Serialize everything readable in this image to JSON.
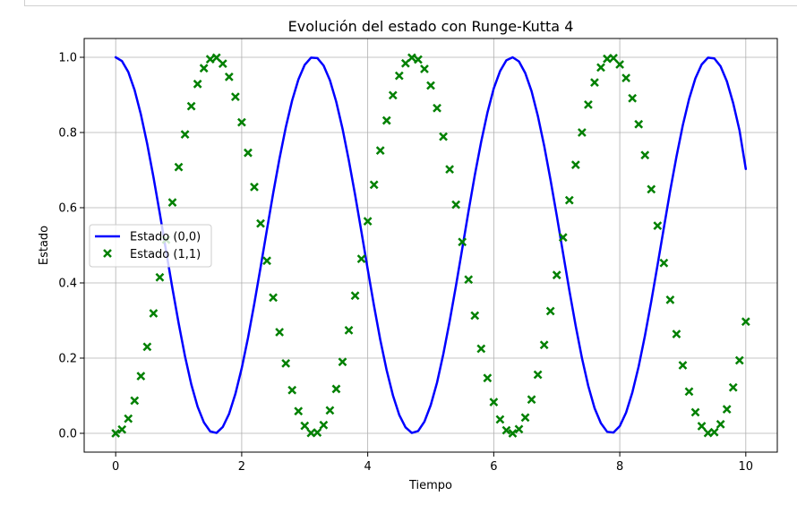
{
  "chart_data": {
    "type": "line",
    "title": "Evolución del estado con Runge-Kutta 4",
    "xlabel": "Tiempo",
    "ylabel": "Estado",
    "xlim": [
      -0.5,
      10.5
    ],
    "ylim": [
      -0.05,
      1.05
    ],
    "xticks": [
      "0",
      "2",
      "4",
      "6",
      "8",
      "10"
    ],
    "yticks": [
      "0.0",
      "0.2",
      "0.4",
      "0.6",
      "0.8",
      "1.0"
    ],
    "grid": true,
    "legend_position": "center-left",
    "series": [
      {
        "name": "Estado (0,0)",
        "style": "line",
        "color": "#0000ff",
        "x": [
          0,
          0.1,
          0.2,
          0.3,
          0.4,
          0.5,
          0.6,
          0.7,
          0.8,
          0.9,
          1.0,
          1.1,
          1.2,
          1.3,
          1.4,
          1.5,
          1.6,
          1.7,
          1.8,
          1.9,
          2.0,
          2.1,
          2.2,
          2.3,
          2.4,
          2.5,
          2.6,
          2.7,
          2.8,
          2.9,
          3.0,
          3.1,
          3.2,
          3.3,
          3.4,
          3.5,
          3.6,
          3.7,
          3.8,
          3.9,
          4.0,
          4.1,
          4.2,
          4.3,
          4.4,
          4.5,
          4.6,
          4.7,
          4.8,
          4.9,
          5.0,
          5.1,
          5.2,
          5.3,
          5.4,
          5.5,
          5.6,
          5.7,
          5.8,
          5.9,
          6.0,
          6.1,
          6.2,
          6.3,
          6.4,
          6.5,
          6.6,
          6.7,
          6.8,
          6.9,
          7.0,
          7.1,
          7.2,
          7.3,
          7.4,
          7.5,
          7.6,
          7.7,
          7.8,
          7.9,
          8.0,
          8.1,
          8.2,
          8.3,
          8.4,
          8.5,
          8.6,
          8.7,
          8.8,
          8.9,
          9.0,
          9.1,
          9.2,
          9.3,
          9.4,
          9.5,
          9.6,
          9.7,
          9.8,
          9.9,
          10.0
        ],
        "y": [
          1.0,
          0.99,
          0.961,
          0.913,
          0.848,
          0.77,
          0.681,
          0.585,
          0.485,
          0.386,
          0.292,
          0.205,
          0.13,
          0.071,
          0.029,
          0.005,
          0.001,
          0.017,
          0.052,
          0.105,
          0.173,
          0.254,
          0.345,
          0.442,
          0.541,
          0.639,
          0.731,
          0.814,
          0.885,
          0.941,
          0.98,
          0.999,
          0.998,
          0.978,
          0.939,
          0.882,
          0.81,
          0.726,
          0.634,
          0.536,
          0.436,
          0.339,
          0.248,
          0.168,
          0.101,
          0.049,
          0.016,
          0.001,
          0.006,
          0.031,
          0.075,
          0.135,
          0.211,
          0.298,
          0.392,
          0.491,
          0.591,
          0.687,
          0.775,
          0.853,
          0.917,
          0.963,
          0.992,
          1.0,
          0.989,
          0.958,
          0.91,
          0.844,
          0.765,
          0.675,
          0.579,
          0.479,
          0.38,
          0.286,
          0.2,
          0.126,
          0.067,
          0.027,
          0.004,
          0.002,
          0.019,
          0.055,
          0.109,
          0.178,
          0.26,
          0.351,
          0.448,
          0.547,
          0.645,
          0.736,
          0.819,
          0.889,
          0.944,
          0.981,
          0.999,
          0.997,
          0.976,
          0.936,
          0.878,
          0.806,
          0.703
        ]
      },
      {
        "name": "Estado (1,1)",
        "style": "x-marker",
        "color": "#008000",
        "x": [
          0,
          0.1,
          0.2,
          0.3,
          0.4,
          0.5,
          0.6,
          0.7,
          0.8,
          0.9,
          1.0,
          1.1,
          1.2,
          1.3,
          1.4,
          1.5,
          1.6,
          1.7,
          1.8,
          1.9,
          2.0,
          2.1,
          2.2,
          2.3,
          2.4,
          2.5,
          2.6,
          2.7,
          2.8,
          2.9,
          3.0,
          3.1,
          3.2,
          3.3,
          3.4,
          3.5,
          3.6,
          3.7,
          3.8,
          3.9,
          4.0,
          4.1,
          4.2,
          4.3,
          4.4,
          4.5,
          4.6,
          4.7,
          4.8,
          4.9,
          5.0,
          5.1,
          5.2,
          5.3,
          5.4,
          5.5,
          5.6,
          5.7,
          5.8,
          5.9,
          6.0,
          6.1,
          6.2,
          6.3,
          6.4,
          6.5,
          6.6,
          6.7,
          6.8,
          6.9,
          7.0,
          7.1,
          7.2,
          7.3,
          7.4,
          7.5,
          7.6,
          7.7,
          7.8,
          7.9,
          8.0,
          8.1,
          8.2,
          8.3,
          8.4,
          8.5,
          8.6,
          8.7,
          8.8,
          8.9,
          9.0,
          9.1,
          9.2,
          9.3,
          9.4,
          9.5,
          9.6,
          9.7,
          9.8,
          9.9,
          10.0
        ],
        "y": [
          0.0,
          0.01,
          0.039,
          0.087,
          0.152,
          0.23,
          0.319,
          0.415,
          0.515,
          0.614,
          0.708,
          0.795,
          0.87,
          0.929,
          0.971,
          0.995,
          0.999,
          0.983,
          0.948,
          0.895,
          0.827,
          0.746,
          0.655,
          0.558,
          0.459,
          0.361,
          0.269,
          0.186,
          0.115,
          0.059,
          0.02,
          0.001,
          0.002,
          0.022,
          0.061,
          0.118,
          0.19,
          0.274,
          0.366,
          0.464,
          0.564,
          0.661,
          0.752,
          0.832,
          0.899,
          0.951,
          0.984,
          0.999,
          0.994,
          0.969,
          0.925,
          0.865,
          0.789,
          0.702,
          0.608,
          0.509,
          0.409,
          0.313,
          0.225,
          0.147,
          0.083,
          0.037,
          0.008,
          0.0,
          0.011,
          0.042,
          0.09,
          0.156,
          0.235,
          0.325,
          0.421,
          0.521,
          0.62,
          0.714,
          0.8,
          0.874,
          0.933,
          0.973,
          0.996,
          0.998,
          0.981,
          0.945,
          0.891,
          0.822,
          0.74,
          0.649,
          0.552,
          0.453,
          0.355,
          0.264,
          0.181,
          0.111,
          0.056,
          0.019,
          0.001,
          0.003,
          0.024,
          0.064,
          0.122,
          0.194,
          0.297
        ]
      }
    ]
  }
}
